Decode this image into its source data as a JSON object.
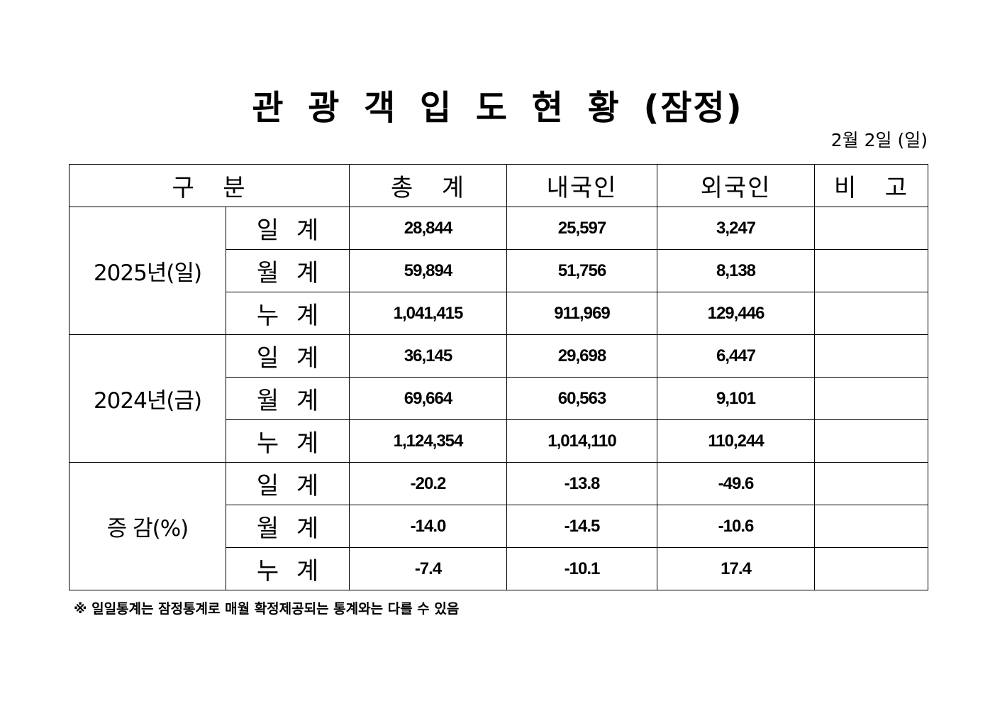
{
  "title": "관 광 객 입 도 현 황 (잠정)",
  "date": "2월 2일 (일)",
  "headers": [
    "구   분",
    "총   계",
    "내국인",
    "외국인",
    "비   고"
  ],
  "groups": [
    {
      "label": "2025년(일)",
      "rows": [
        {
          "label": "일 계",
          "total": "28,844",
          "domestic": "25,597",
          "foreign": "3,247",
          "note": ""
        },
        {
          "label": "월 계",
          "total": "59,894",
          "domestic": "51,756",
          "foreign": "8,138",
          "note": ""
        },
        {
          "label": "누 계",
          "total": "1,041,415",
          "domestic": "911,969",
          "foreign": "129,446",
          "note": ""
        }
      ]
    },
    {
      "label": "2024년(금)",
      "rows": [
        {
          "label": "일 계",
          "total": "36,145",
          "domestic": "29,698",
          "foreign": "6,447",
          "note": ""
        },
        {
          "label": "월 계",
          "total": "69,664",
          "domestic": "60,563",
          "foreign": "9,101",
          "note": ""
        },
        {
          "label": "누 계",
          "total": "1,124,354",
          "domestic": "1,014,110",
          "foreign": "110,244",
          "note": ""
        }
      ]
    },
    {
      "label": "증 감(%)",
      "rows": [
        {
          "label": "일 계",
          "total": "-20.2",
          "domestic": "-13.8",
          "foreign": "-49.6",
          "note": ""
        },
        {
          "label": "월 계",
          "total": "-14.0",
          "domestic": "-14.5",
          "foreign": "-10.6",
          "note": ""
        },
        {
          "label": "누 계",
          "total": "-7.4",
          "domestic": "-10.1",
          "foreign": "17.4",
          "note": ""
        }
      ]
    }
  ],
  "footnote": "※ 일일통계는 잠정통계로 매월 확정제공되는 통계와는 다를 수 있음"
}
